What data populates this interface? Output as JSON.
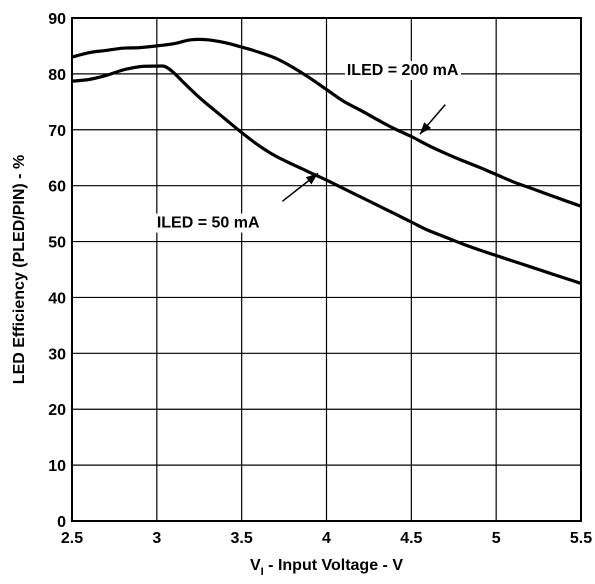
{
  "chart_data": {
    "type": "line",
    "title": "",
    "xlabel": {
      "symbol": "V",
      "subscript": "I",
      "rest": " - Input Voltage - V"
    },
    "ylabel": "LED Efficiency (PLED/PIN) - %",
    "xlim": [
      2.5,
      5.5
    ],
    "ylim": [
      0,
      90
    ],
    "xticks": [
      2.5,
      3,
      3.5,
      4,
      4.5,
      5,
      5.5
    ],
    "xtick_labels": [
      "2.5",
      "3",
      "3.5",
      "4",
      "4.5",
      "5",
      "5.5"
    ],
    "yticks": [
      0,
      10,
      20,
      30,
      40,
      50,
      60,
      70,
      80,
      90
    ],
    "ytick_labels": [
      "0",
      "10",
      "20",
      "30",
      "40",
      "50",
      "60",
      "70",
      "80",
      "90"
    ],
    "grid": true,
    "series": [
      {
        "name": "ILED = 200 mA",
        "x": [
          2.5,
          2.6,
          2.7,
          2.8,
          2.9,
          3.0,
          3.1,
          3.2,
          3.3,
          3.4,
          3.5,
          3.6,
          3.7,
          3.8,
          3.9,
          4.0,
          4.1,
          4.2,
          4.3,
          4.4,
          4.5,
          4.6,
          4.7,
          4.8,
          4.9,
          5.0,
          5.1,
          5.2,
          5.3,
          5.4,
          5.5
        ],
        "y": [
          83,
          83.8,
          84.2,
          84.6,
          84.7,
          85.0,
          85.4,
          86.1,
          86.1,
          85.6,
          84.8,
          83.9,
          82.8,
          81.2,
          79.3,
          77.2,
          75.1,
          73.5,
          71.8,
          70.2,
          68.8,
          67.2,
          65.8,
          64.5,
          63.3,
          62.0,
          60.7,
          59.6,
          58.5,
          57.4,
          56.3
        ]
      },
      {
        "name": "ILED = 50 mA",
        "x": [
          2.5,
          2.6,
          2.7,
          2.8,
          2.9,
          3.0,
          3.05,
          3.1,
          3.15,
          3.2,
          3.25,
          3.3,
          3.4,
          3.5,
          3.6,
          3.7,
          3.8,
          3.9,
          4.0,
          4.1,
          4.2,
          4.3,
          4.4,
          4.5,
          4.6,
          4.7,
          4.8,
          4.9,
          5.0,
          5.1,
          5.2,
          5.3,
          5.4,
          5.5
        ],
        "y": [
          78.7,
          79.0,
          79.7,
          80.7,
          81.3,
          81.4,
          81.3,
          80.2,
          78.7,
          77.2,
          75.8,
          74.5,
          72.0,
          69.5,
          67.2,
          65.3,
          63.8,
          62.4,
          61.0,
          59.5,
          58.0,
          56.5,
          55.0,
          53.5,
          52.0,
          50.8,
          49.6,
          48.5,
          47.5,
          46.5,
          45.5,
          44.5,
          43.5,
          42.5
        ]
      }
    ],
    "annotations": [
      {
        "text": "ILED = 200 mA",
        "series": 0,
        "label_at": [
          4.12,
          79.8
        ],
        "arrow_from": [
          4.7,
          74.5
        ],
        "arrow_to": [
          4.55,
          69.2
        ]
      },
      {
        "text": "ILED = 50 mA",
        "series": 1,
        "label_at": [
          3.0,
          52.5
        ],
        "arrow_from": [
          3.74,
          57.2
        ],
        "arrow_to": [
          3.95,
          62.2
        ]
      }
    ]
  }
}
